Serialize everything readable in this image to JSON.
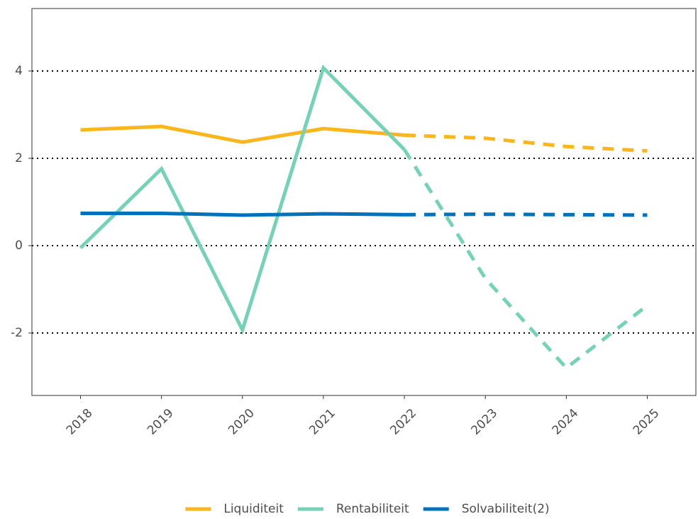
{
  "chart_data": {
    "type": "line",
    "x": [
      2018,
      2019,
      2020,
      2021,
      2022,
      2023,
      2024,
      2025
    ],
    "xlim": [
      2017.4,
      2025.6
    ],
    "xticks": [
      2018,
      2019,
      2020,
      2021,
      2022,
      2023,
      2024,
      2025
    ],
    "ylim": [
      -3.43,
      5.43
    ],
    "yticks": [
      -2,
      0,
      2,
      4
    ],
    "grid": true,
    "legend": "bottom",
    "dash_from": 2022,
    "series": [
      {
        "name": "Liquiditeit",
        "color": "#fbb61b",
        "values": [
          2.65,
          2.73,
          2.37,
          2.68,
          2.53,
          2.46,
          2.27,
          2.17
        ]
      },
      {
        "name": "Rentabiliteit",
        "color": "#76d2b6",
        "values": [
          -0.05,
          1.76,
          -1.93,
          4.07,
          2.2,
          -0.75,
          -2.8,
          -1.37
        ]
      },
      {
        "name": "Solvabiliteit(2)",
        "color": "#0072bc",
        "values": [
          0.74,
          0.74,
          0.7,
          0.73,
          0.71,
          0.72,
          0.71,
          0.7
        ]
      }
    ]
  }
}
